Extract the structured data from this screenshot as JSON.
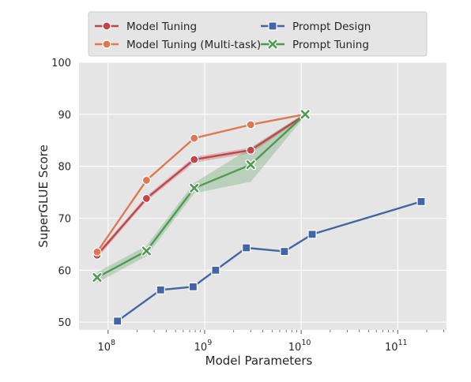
{
  "chart_data": {
    "type": "line",
    "xlabel": "Model Parameters",
    "ylabel": "SuperGLUE Score",
    "x_scale": "log",
    "xlim": [
      50000000,
      320000000000
    ],
    "ylim": [
      48.5,
      100
    ],
    "grid": true,
    "background": "#e5e5e5",
    "legend_position": "top",
    "x_ticks": [
      {
        "value": 100000000,
        "base": "10",
        "exp": "8"
      },
      {
        "value": 1000000000,
        "base": "10",
        "exp": "9"
      },
      {
        "value": 10000000000,
        "base": "10",
        "exp": "10"
      },
      {
        "value": 100000000000,
        "base": "10",
        "exp": "11"
      }
    ],
    "y_ticks": [
      50,
      60,
      70,
      80,
      90,
      100
    ],
    "series": [
      {
        "name": "Model Tuning",
        "color": "#c0464c",
        "marker": "circle",
        "x": [
          77000000,
          250000000,
          780000000,
          3000000000,
          11000000000
        ],
        "y": [
          62.9,
          73.8,
          81.3,
          83.1,
          89.9
        ],
        "band_low": [
          62.3,
          73.3,
          80.7,
          82.5,
          89.6
        ],
        "band_high": [
          63.4,
          74.3,
          81.8,
          83.6,
          90.2
        ]
      },
      {
        "name": "Model Tuning (Multi-task)",
        "color": "#dd7853",
        "marker": "circle",
        "x": [
          77000000,
          250000000,
          780000000,
          3000000000,
          11000000000
        ],
        "y": [
          63.5,
          77.3,
          85.4,
          88.0,
          90.0
        ]
      },
      {
        "name": "Prompt Design",
        "color": "#4364a6",
        "marker": "square",
        "x": [
          125000000,
          350000000,
          760000000,
          1300000000,
          2700000000,
          6700000000,
          13000000000,
          175000000000
        ],
        "y": [
          50.2,
          56.2,
          56.8,
          60.0,
          64.3,
          63.6,
          66.9,
          73.2
        ]
      },
      {
        "name": "Prompt Tuning",
        "color": "#4d9a53",
        "marker": "x",
        "x": [
          77000000,
          250000000,
          780000000,
          3000000000,
          11000000000
        ],
        "y": [
          58.6,
          63.7,
          75.8,
          80.3,
          90.0
        ],
        "band_low": [
          57.6,
          62.7,
          74.8,
          77.0,
          89.7
        ],
        "band_high": [
          59.6,
          64.7,
          76.8,
          83.5,
          90.3
        ]
      }
    ]
  }
}
